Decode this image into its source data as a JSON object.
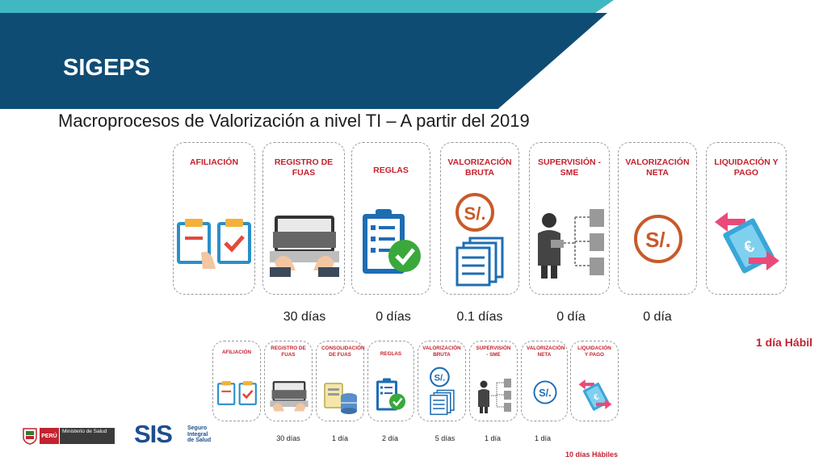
{
  "header": {
    "title": "SIGEPS"
  },
  "subtitle": "Macroprocesos de Valorización a nivel TI – A partir del 2019",
  "top_row": {
    "cards": [
      {
        "label": "AFILIACIÓN",
        "icon": "affiliation-clipboards-icon"
      },
      {
        "label": "REGISTRO DE FUAS",
        "icon": "laptop-typing-icon"
      },
      {
        "label": "REGLAS",
        "icon": "checklist-clipboard-icon"
      },
      {
        "label": "VALORIZACIÓN BRUTA",
        "icon": "soles-documents-icon"
      },
      {
        "label": "SUPERVISIÓN - SME",
        "icon": "supervisor-laptop-icon"
      },
      {
        "label": "VALORIZACIÓN NETA",
        "icon": "soles-coin-icon"
      },
      {
        "label": "LIQUIDACIÓN Y PAGO",
        "icon": "euro-bills-transfer-icon"
      }
    ],
    "durations": [
      "30 días",
      "0 días",
      "0.1 días",
      "0 día",
      "0 día"
    ],
    "total": "1 día Hábil"
  },
  "bottom_row": {
    "cards": [
      {
        "label": "AFILIACIÓN",
        "icon": "affiliation-clipboards-icon"
      },
      {
        "label": "REGISTRO DE FUAS",
        "icon": "laptop-typing-icon"
      },
      {
        "label": "CONSOLIDACIÓN DE FUAS",
        "icon": "server-database-icon"
      },
      {
        "label": "REGLAS",
        "icon": "checklist-clipboard-icon"
      },
      {
        "label": "VALORIZACIÓN BRUTA",
        "icon": "soles-documents-icon"
      },
      {
        "label": "SUPERVISIÓN - SME",
        "icon": "supervisor-laptop-icon"
      },
      {
        "label": "VALORIZACIÓN NETA",
        "icon": "soles-coin-icon"
      },
      {
        "label": "LIQUIDACIÓN Y PAGO",
        "icon": "euro-bills-transfer-icon"
      }
    ],
    "durations": [
      "30 días",
      "1 día",
      "2 día",
      "5 días",
      "1 día",
      "1 día"
    ],
    "total": "10 días Hábiles"
  },
  "logos": {
    "peru_badge": "PERÚ",
    "peru_ministry": "Ministerio de Salud",
    "sis": "SIS",
    "sis_tagline": "Seguro Integral de Salud"
  },
  "colors": {
    "navy": "#0f4c74",
    "teal": "#3fb8c1",
    "accent_red": "#c2232f",
    "icon_blue": "#1e6db3",
    "icon_green": "#3aa83a"
  }
}
